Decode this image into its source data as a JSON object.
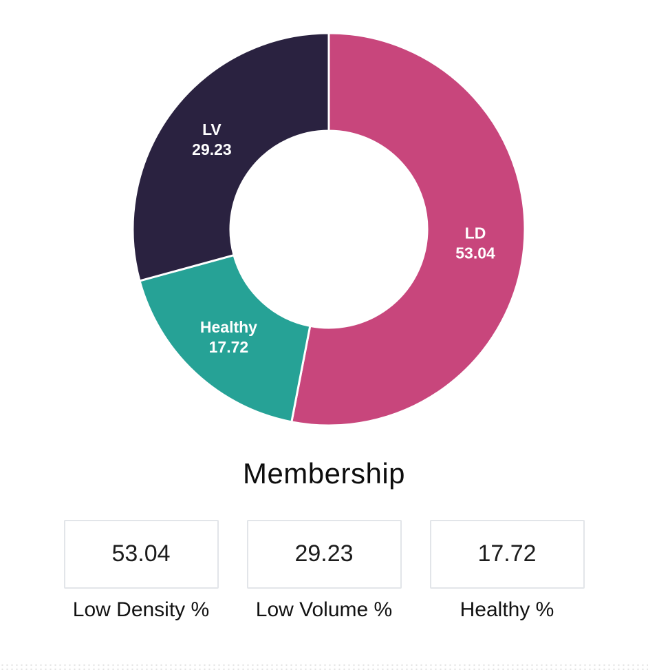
{
  "chart_data": {
    "type": "pie",
    "title": "Membership",
    "hole": 0.5,
    "direction": "clockwise",
    "start_angle_deg": 0,
    "label_color": "#ffffff",
    "separator_color": "#ffffff",
    "segments": [
      {
        "label": "LD",
        "value": 53.04,
        "color": "#C8467C"
      },
      {
        "label": "Healthy",
        "value": 17.72,
        "color": "#26A296"
      },
      {
        "label": "LV",
        "value": 29.23,
        "color": "#2A2240"
      }
    ]
  },
  "title": "Membership",
  "stats": [
    {
      "value": "53.04",
      "label": "Low Density %"
    },
    {
      "value": "29.23",
      "label": "Low Volume %"
    },
    {
      "value": "17.72",
      "label": "Healthy %"
    }
  ],
  "colors": {
    "low_density": "#C8467C",
    "low_volume": "#2A2240",
    "healthy": "#26A296",
    "card_border": "#e2e5e9",
    "text": "#121212"
  }
}
